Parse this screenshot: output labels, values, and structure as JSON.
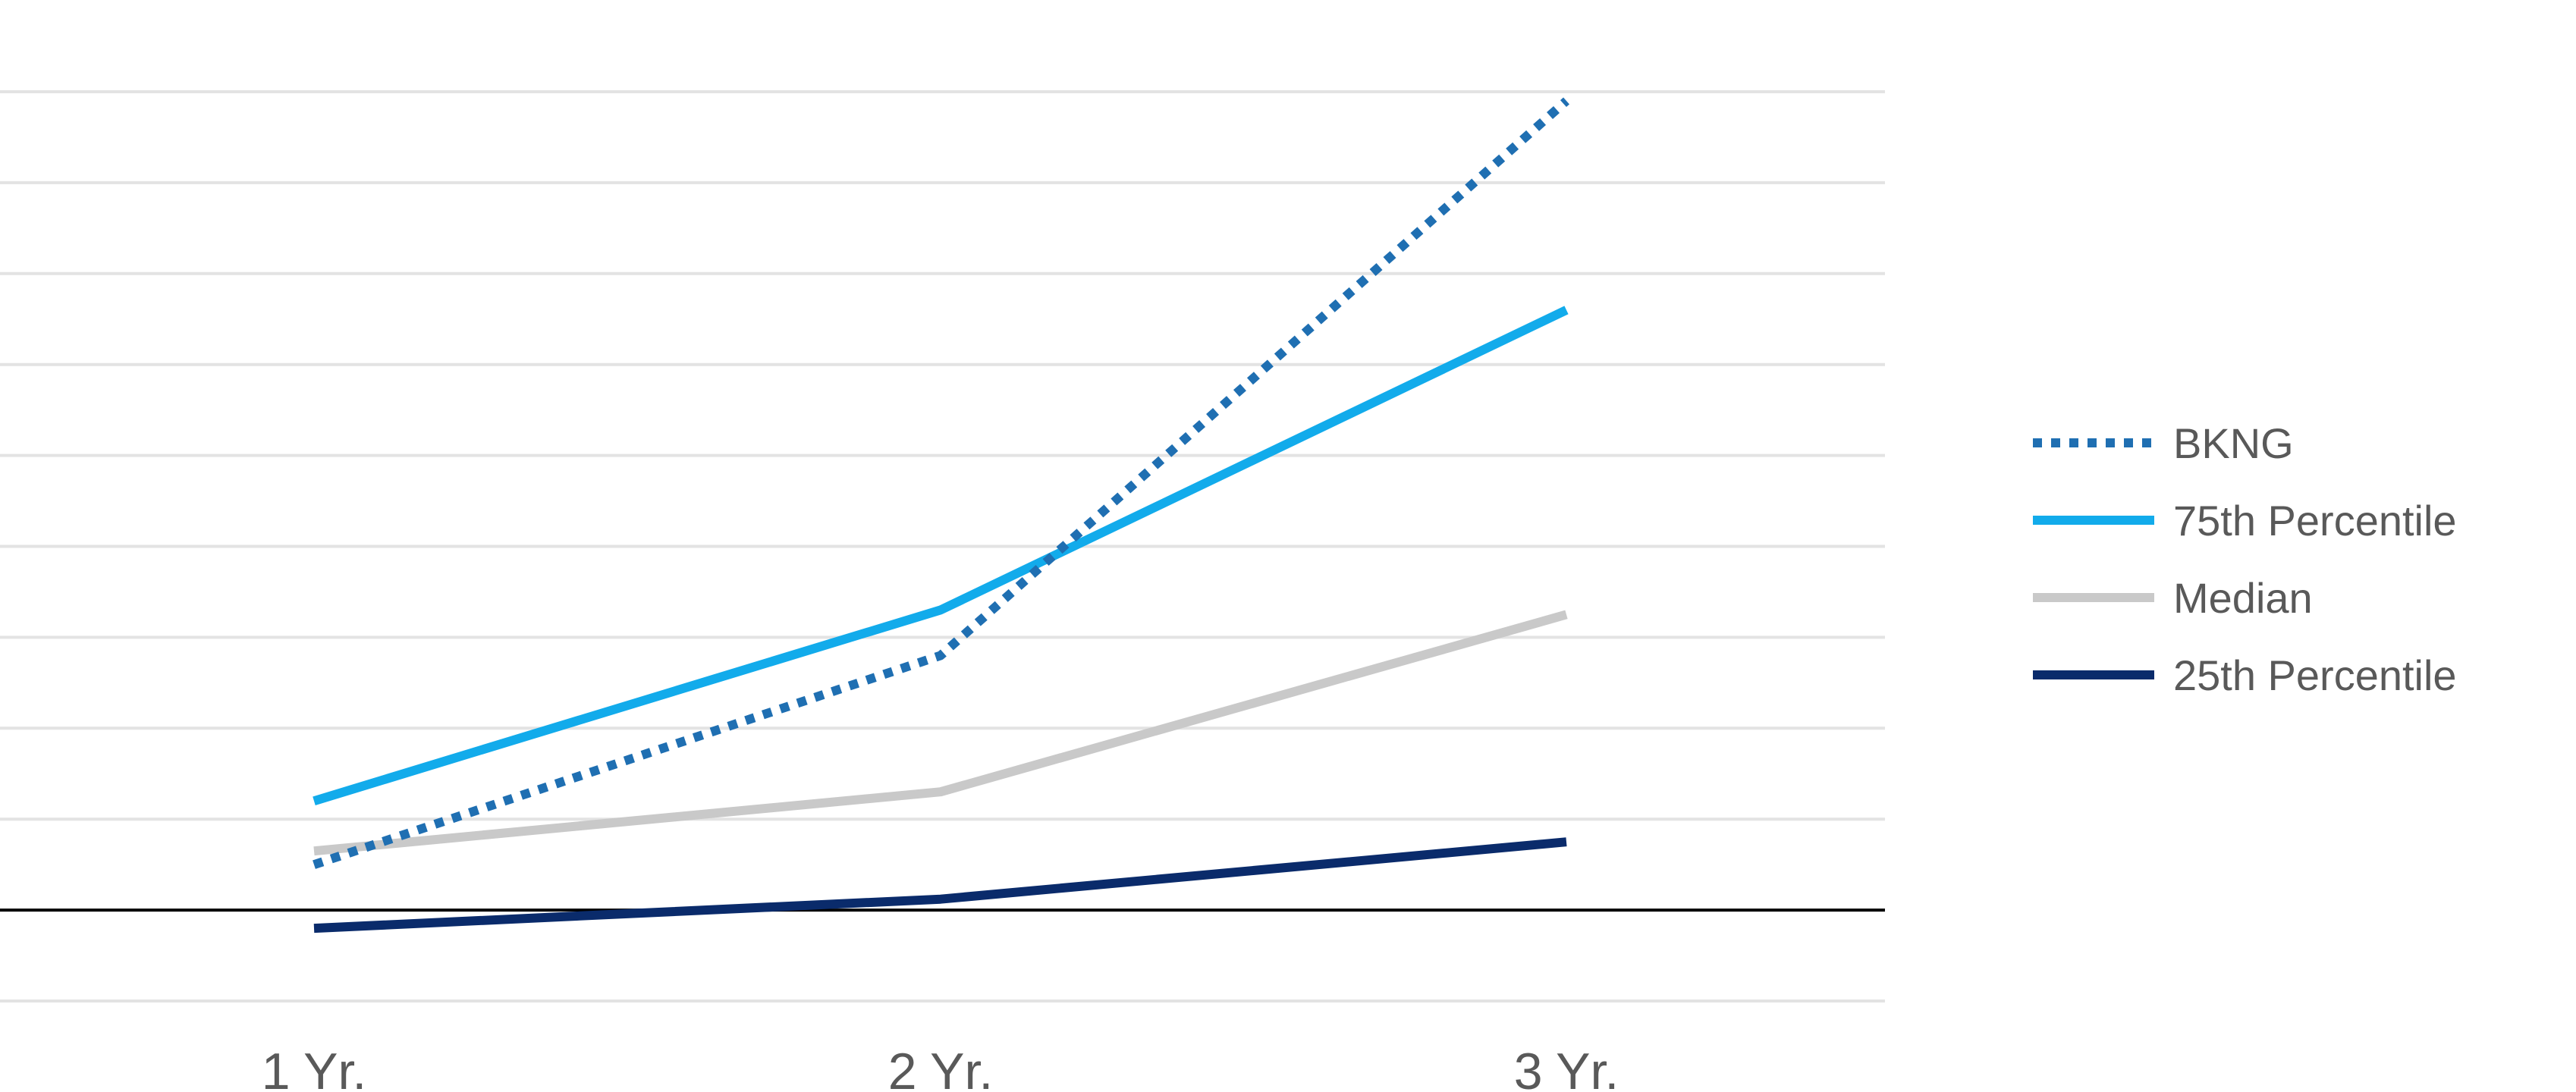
{
  "chart_data": {
    "type": "line",
    "title": "",
    "xlabel": "",
    "ylabel": "",
    "categories": [
      "1 Yr.",
      "2 Yr.",
      "3 Yr."
    ],
    "ylim": [
      -1,
      9
    ],
    "y_gridlines": [
      -1,
      1,
      2,
      3,
      4,
      5,
      6,
      7,
      8,
      9
    ],
    "zero_line": 0,
    "y_tick_labels_shown": false,
    "grid": true,
    "legend_position": "right",
    "series": [
      {
        "name": "BKNG",
        "values": [
          0.5,
          2.8,
          8.9
        ],
        "color": "#1F6FB2",
        "style": "dotted"
      },
      {
        "name": "75th Percentile",
        "values": [
          1.2,
          3.3,
          6.6
        ],
        "color": "#12ABEB",
        "style": "solid"
      },
      {
        "name": "Median",
        "values": [
          0.65,
          1.3,
          3.25
        ],
        "color": "#C9C9C9",
        "style": "solid"
      },
      {
        "name": "25th Percentile",
        "values": [
          -0.2,
          0.12,
          0.75
        ],
        "color": "#0A2B6B",
        "style": "solid"
      }
    ]
  },
  "colors": {
    "gridline": "#E3E3E3",
    "axis": "#000000",
    "text": "#595959"
  }
}
